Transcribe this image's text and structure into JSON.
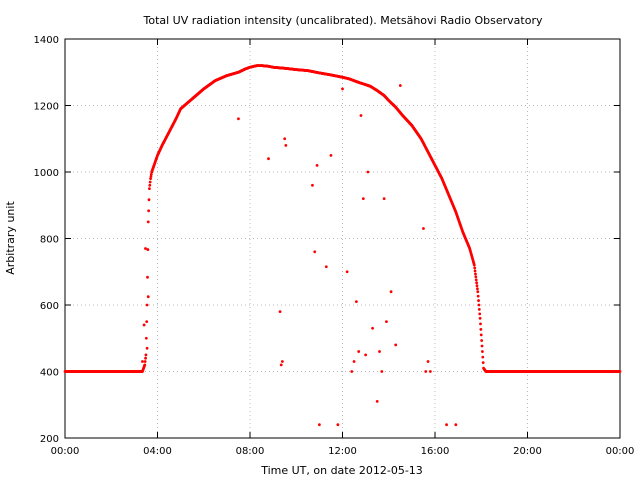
{
  "chart_data": {
    "type": "scatter",
    "title": "Total UV radiation intensity (uncalibrated). Metsähovi Radio Observatory",
    "xlabel": "Time UT, on date 2012-05-13",
    "ylabel": "Arbitrary unit",
    "xlim": [
      0,
      24
    ],
    "ylim": [
      200,
      1400
    ],
    "x_ticks": [
      0,
      4,
      8,
      12,
      16,
      20,
      24
    ],
    "x_tick_labels": [
      "00:00",
      "04:00",
      "08:00",
      "12:00",
      "16:00",
      "20:00",
      "00:00"
    ],
    "y_ticks": [
      200,
      400,
      600,
      800,
      1000,
      1200,
      1400
    ],
    "y_tick_labels": [
      "200",
      "400",
      "600",
      "800",
      "1000",
      "1200",
      "1400"
    ],
    "grid": true,
    "point_color": "#ff0000",
    "series": [
      {
        "values_x_hours": [
          0.0,
          1.0,
          2.0,
          3.0,
          3.35,
          3.45,
          3.5,
          3.55,
          3.6,
          3.65,
          3.7,
          3.75,
          3.8,
          3.85,
          3.9,
          3.95,
          4.0,
          4.2,
          4.5,
          4.8,
          5.0,
          5.5,
          6.0,
          6.5,
          7.0,
          7.5,
          7.8,
          8.0,
          8.3,
          8.5,
          8.8,
          9.0,
          9.5,
          10.0,
          10.5,
          11.0,
          11.5,
          12.0,
          12.3,
          12.6,
          12.9,
          13.2,
          13.5,
          13.8,
          14.0,
          14.3,
          14.6,
          15.0,
          15.4,
          15.7,
          16.0,
          16.3,
          16.6,
          16.9,
          17.2,
          17.5,
          17.7,
          17.85,
          17.95,
          18.05,
          18.1,
          18.2,
          19.0,
          20.0,
          21.0,
          22.0,
          23.0,
          24.0
        ],
        "values_y": [
          400,
          400,
          400,
          400,
          400,
          420,
          450,
          600,
          850,
          950,
          980,
          1000,
          1010,
          1020,
          1030,
          1040,
          1050,
          1080,
          1120,
          1160,
          1190,
          1220,
          1250,
          1275,
          1290,
          1300,
          1310,
          1315,
          1320,
          1320,
          1318,
          1315,
          1312,
          1308,
          1305,
          1298,
          1292,
          1285,
          1280,
          1272,
          1265,
          1258,
          1245,
          1230,
          1215,
          1195,
          1170,
          1140,
          1100,
          1060,
          1020,
          980,
          930,
          880,
          820,
          770,
          720,
          640,
          560,
          460,
          410,
          400,
          400,
          400,
          400,
          400,
          400,
          400
        ]
      },
      {
        "name": "",
        "values_x_hours": [
          3.35,
          3.42,
          3.48,
          3.55,
          3.6,
          7.5,
          8.8,
          9.3,
          9.35,
          9.4,
          9.5,
          9.55,
          10.7,
          10.8,
          10.9,
          11.0,
          11.3,
          11.5,
          11.8,
          12.0,
          12.2,
          12.4,
          12.5,
          12.6,
          12.7,
          12.8,
          12.9,
          13.0,
          13.1,
          13.3,
          13.5,
          13.6,
          13.7,
          13.8,
          13.9,
          14.1,
          14.3,
          14.5,
          15.5,
          15.6,
          15.7,
          15.8,
          16.5,
          16.9
        ],
        "values_y": [
          430,
          540,
          770,
          470,
          625,
          1160,
          1040,
          580,
          420,
          430,
          1100,
          1080,
          960,
          760,
          1020,
          240,
          715,
          1050,
          240,
          1250,
          700,
          400,
          430,
          610,
          460,
          1170,
          920,
          450,
          1000,
          530,
          310,
          460,
          400,
          920,
          550,
          640,
          480,
          1260,
          830,
          400,
          430,
          400,
          240,
          240
        ]
      }
    ]
  }
}
